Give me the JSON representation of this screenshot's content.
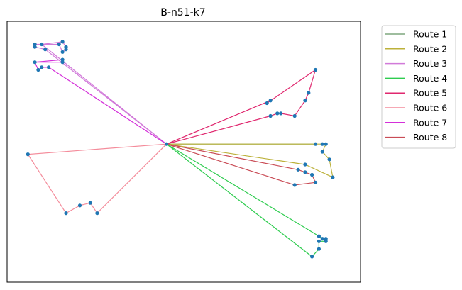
{
  "chart_data": {
    "type": "line",
    "title": "B-n51-k7",
    "xlabel": "",
    "ylabel": "",
    "xlim": [
      -2,
      100
    ],
    "ylim": [
      -2,
      100
    ],
    "grid": false,
    "axes_ticks": false,
    "legend_placement": "outside-top-right",
    "depot": [
      44,
      52
    ],
    "node_color": "#1f77b4",
    "routes": [
      {
        "name": "Route 1",
        "color": "#7fa77f",
        "points": [
          [
            44,
            52
          ],
          [
            87,
            52
          ],
          [
            44,
            52
          ]
        ]
      },
      {
        "name": "Route 2",
        "color": "#bcb13a",
        "points": [
          [
            44,
            52
          ],
          [
            89,
            52
          ],
          [
            90,
            52
          ],
          [
            89,
            49
          ],
          [
            91,
            46
          ],
          [
            92,
            39
          ],
          [
            84,
            44
          ],
          [
            44,
            52
          ]
        ]
      },
      {
        "name": "Route 3",
        "color": "#d17ad9",
        "points": [
          [
            44,
            52
          ],
          [
            9,
            89
          ],
          [
            6,
            90
          ],
          [
            6,
            91
          ],
          [
            13,
            91
          ],
          [
            14,
            88
          ],
          [
            15,
            89
          ],
          [
            15,
            90
          ],
          [
            14,
            92
          ],
          [
            8,
            91
          ],
          [
            44,
            52
          ]
        ]
      },
      {
        "name": "Route 4",
        "color": "#2ecc4f",
        "points": [
          [
            44,
            52
          ],
          [
            88,
            16
          ],
          [
            89,
            15
          ],
          [
            90,
            15
          ],
          [
            90,
            14
          ],
          [
            88,
            14
          ],
          [
            88,
            11
          ],
          [
            86,
            8
          ],
          [
            44,
            52
          ]
        ]
      },
      {
        "name": "Route 5",
        "color": "#e0286f",
        "points": [
          [
            44,
            52
          ],
          [
            74,
            63
          ],
          [
            76,
            64
          ],
          [
            77,
            64
          ],
          [
            81,
            63
          ],
          [
            84,
            69
          ],
          [
            85,
            72
          ],
          [
            87,
            81
          ],
          [
            73,
            68
          ],
          [
            74,
            69
          ],
          [
            44,
            52
          ]
        ]
      },
      {
        "name": "Route 6",
        "color": "#f48c9b",
        "points": [
          [
            44,
            52
          ],
          [
            4,
            48
          ],
          [
            15,
            25
          ],
          [
            19,
            28
          ],
          [
            22,
            29
          ],
          [
            24,
            25
          ],
          [
            44,
            52
          ]
        ]
      },
      {
        "name": "Route 7",
        "color": "#d42fd9",
        "points": [
          [
            44,
            52
          ],
          [
            10,
            82
          ],
          [
            8,
            82
          ],
          [
            7,
            81
          ],
          [
            6,
            84
          ],
          [
            14,
            85
          ],
          [
            14,
            84
          ],
          [
            6,
            84
          ]
        ]
      },
      {
        "name": "Route 8",
        "color": "#c94c56",
        "points": [
          [
            44,
            52
          ],
          [
            82,
            42
          ],
          [
            84,
            41
          ],
          [
            86,
            40
          ],
          [
            87,
            37
          ],
          [
            81,
            36
          ],
          [
            44,
            52
          ]
        ]
      }
    ]
  }
}
